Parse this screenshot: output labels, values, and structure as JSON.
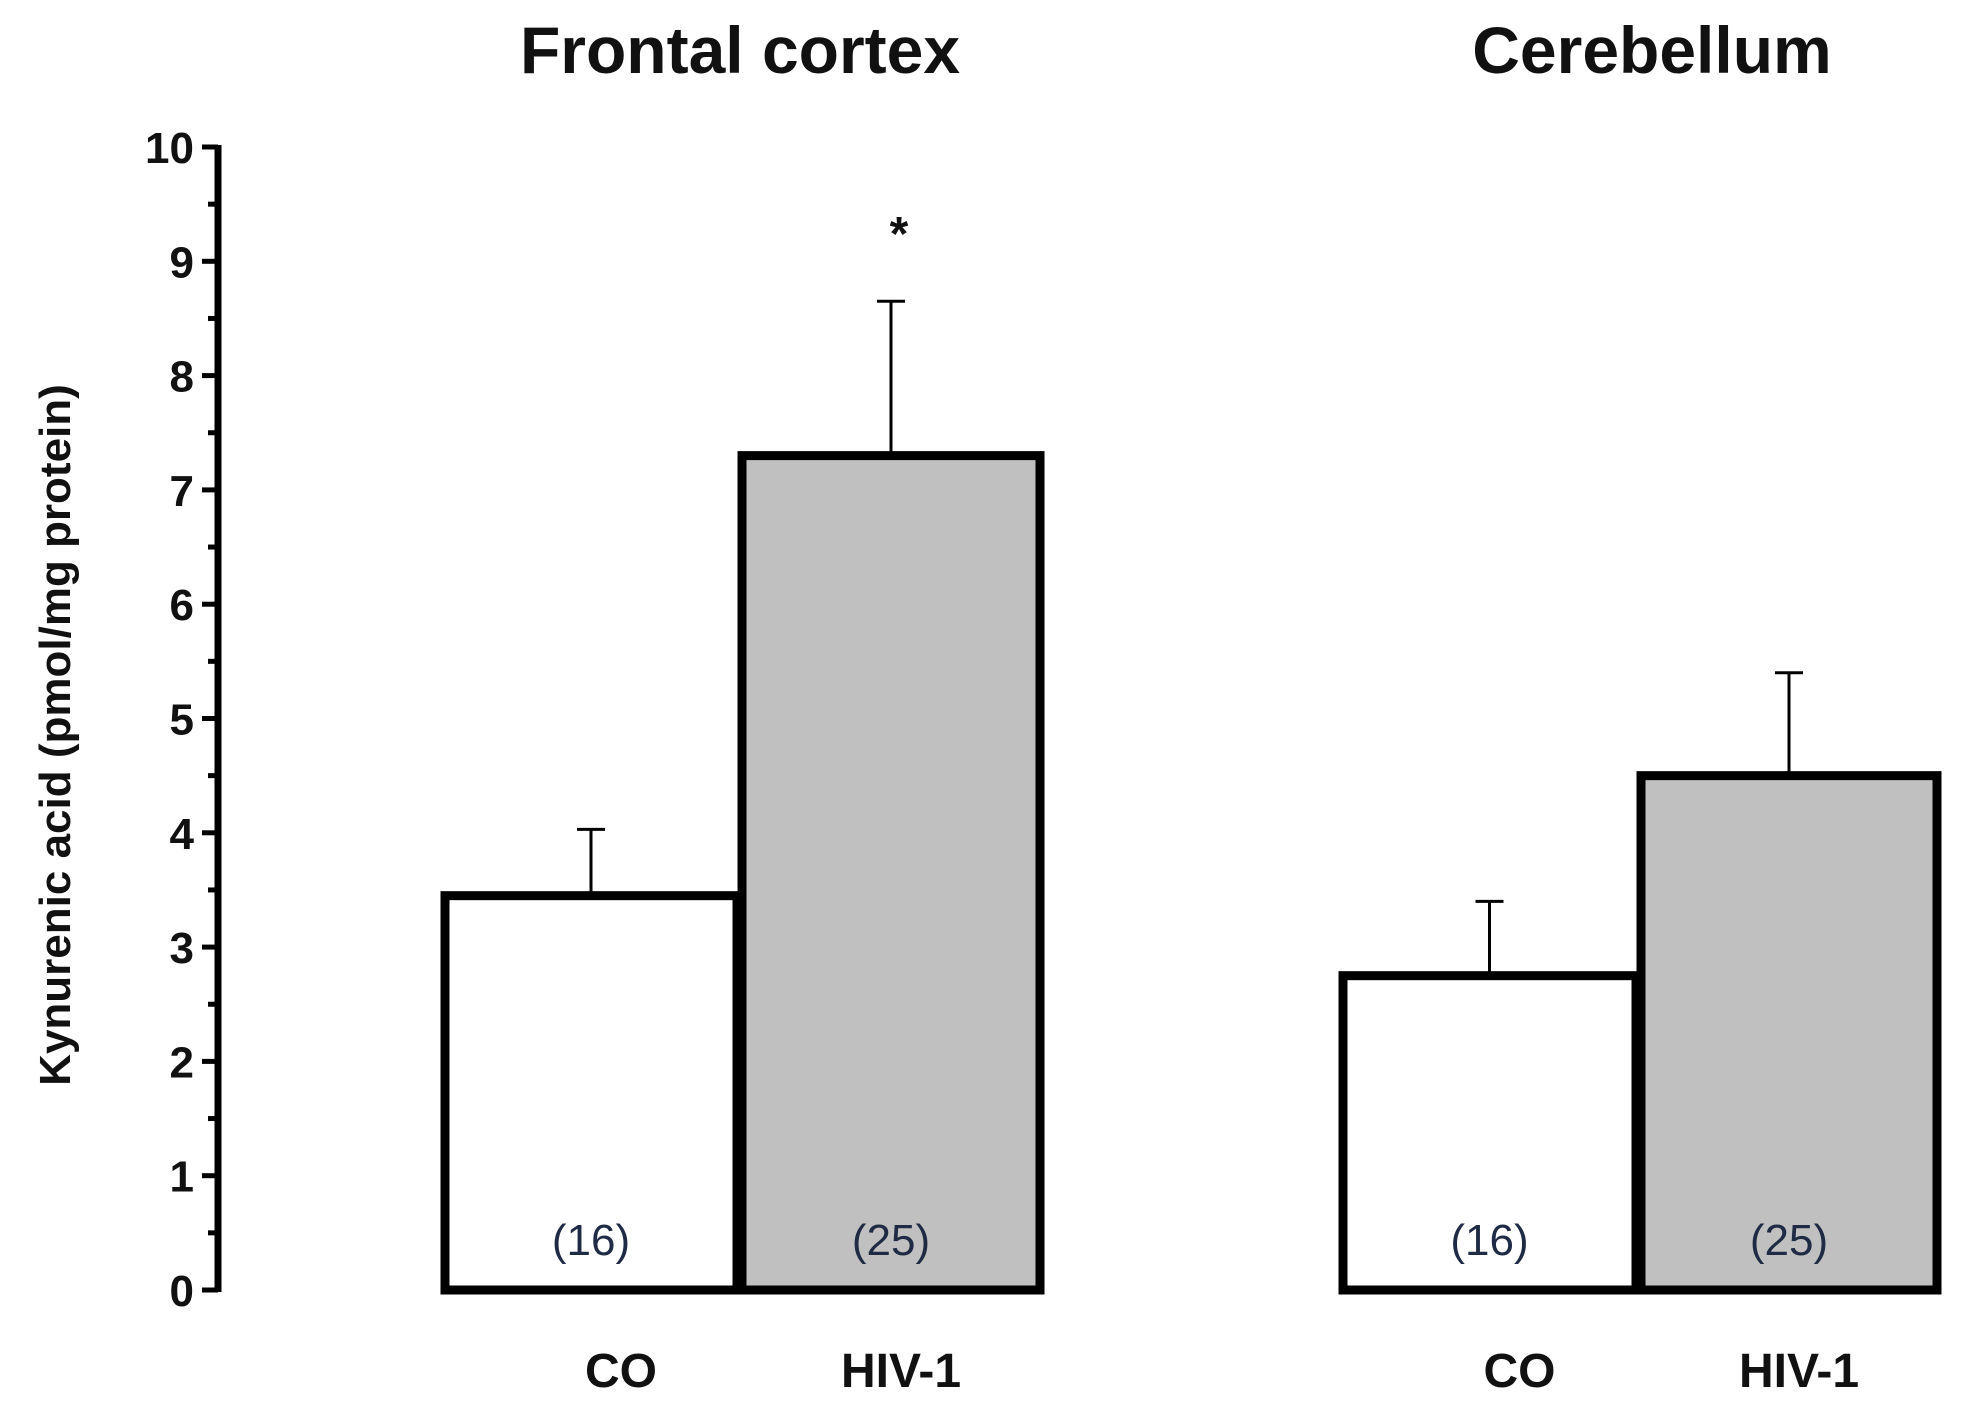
{
  "chart_data": {
    "type": "bar",
    "ylabel": "Kynurenic acid (pmol/mg protein)",
    "ylim": [
      0,
      10
    ],
    "yticks": [
      "0",
      "1",
      "2",
      "3",
      "4",
      "5",
      "6",
      "7",
      "8",
      "9",
      "10"
    ],
    "categories": [
      "CO",
      "HIV-1"
    ],
    "colors": {
      "CO": "#ffffff",
      "HIV-1": "#c0c0c0",
      "stroke": "#000000"
    },
    "panels": [
      {
        "title": "Frontal cortex",
        "bars": [
          {
            "category": "CO",
            "value": 3.45,
            "error": 0.58,
            "n_label": "(16)",
            "significance": ""
          },
          {
            "category": "HIV-1",
            "value": 7.3,
            "error": 1.35,
            "n_label": "(25)",
            "significance": "*"
          }
        ]
      },
      {
        "title": "Cerebellum",
        "bars": [
          {
            "category": "CO",
            "value": 2.75,
            "error": 0.65,
            "n_label": "(16)",
            "significance": ""
          },
          {
            "category": "HIV-1",
            "value": 4.5,
            "error": 0.9,
            "n_label": "(25)",
            "significance": ""
          }
        ]
      }
    ]
  }
}
